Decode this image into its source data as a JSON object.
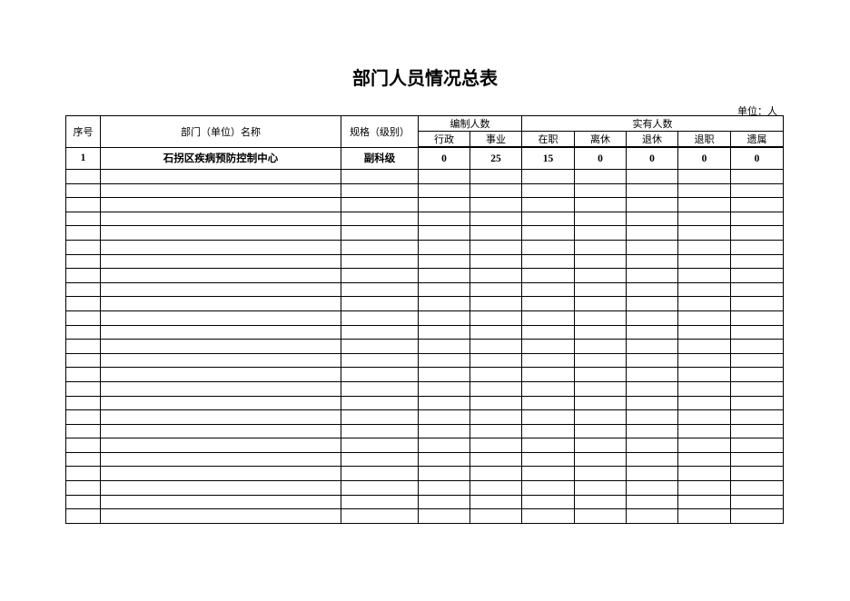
{
  "title": "部门人员情况总表",
  "unit_label": "单位：人",
  "headers": {
    "seq": "序号",
    "dept": "部门（单位）名称",
    "level": "规格（级别）",
    "staffing": "编制人数",
    "staffing_sub": [
      "行政",
      "事业"
    ],
    "actual": "实有人数",
    "actual_sub": [
      "在职",
      "离休",
      "退休",
      "退职",
      "遗属"
    ]
  },
  "rows": [
    [
      "1",
      "石拐区疾病预防控制中心",
      "副科级",
      "0",
      "25",
      "15",
      "0",
      "0",
      "0",
      "0"
    ]
  ]
}
